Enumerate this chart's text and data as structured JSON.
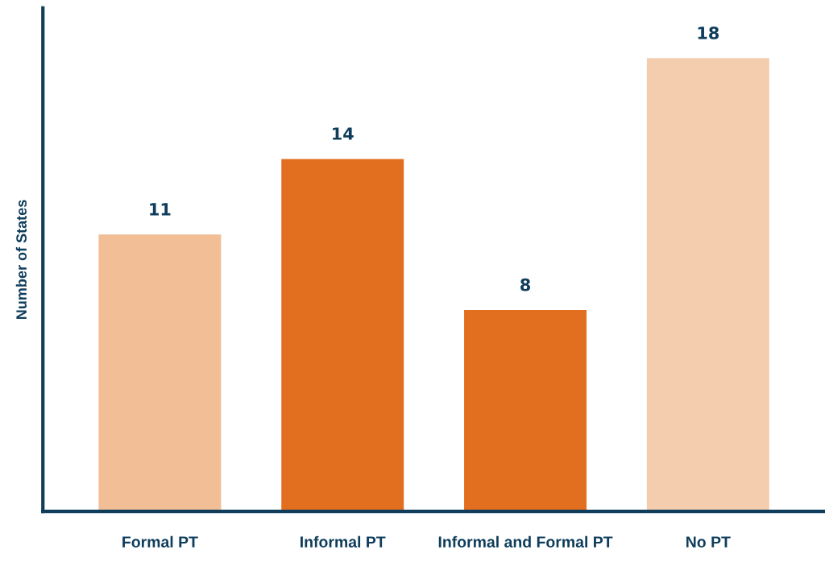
{
  "chart_data": {
    "type": "bar",
    "ylabel": "Number of States",
    "categories": [
      "Formal PT",
      "Informal PT",
      "Informal and Formal PT",
      "No PT"
    ],
    "values": [
      11,
      14,
      8,
      18
    ],
    "colors": [
      "#f1be95",
      "#e26e1f",
      "#e26e1f",
      "#f4cdae"
    ],
    "ylim": [
      0,
      20
    ],
    "tick_labels": "x",
    "data_labels": true,
    "grid": false,
    "legend": false
  }
}
